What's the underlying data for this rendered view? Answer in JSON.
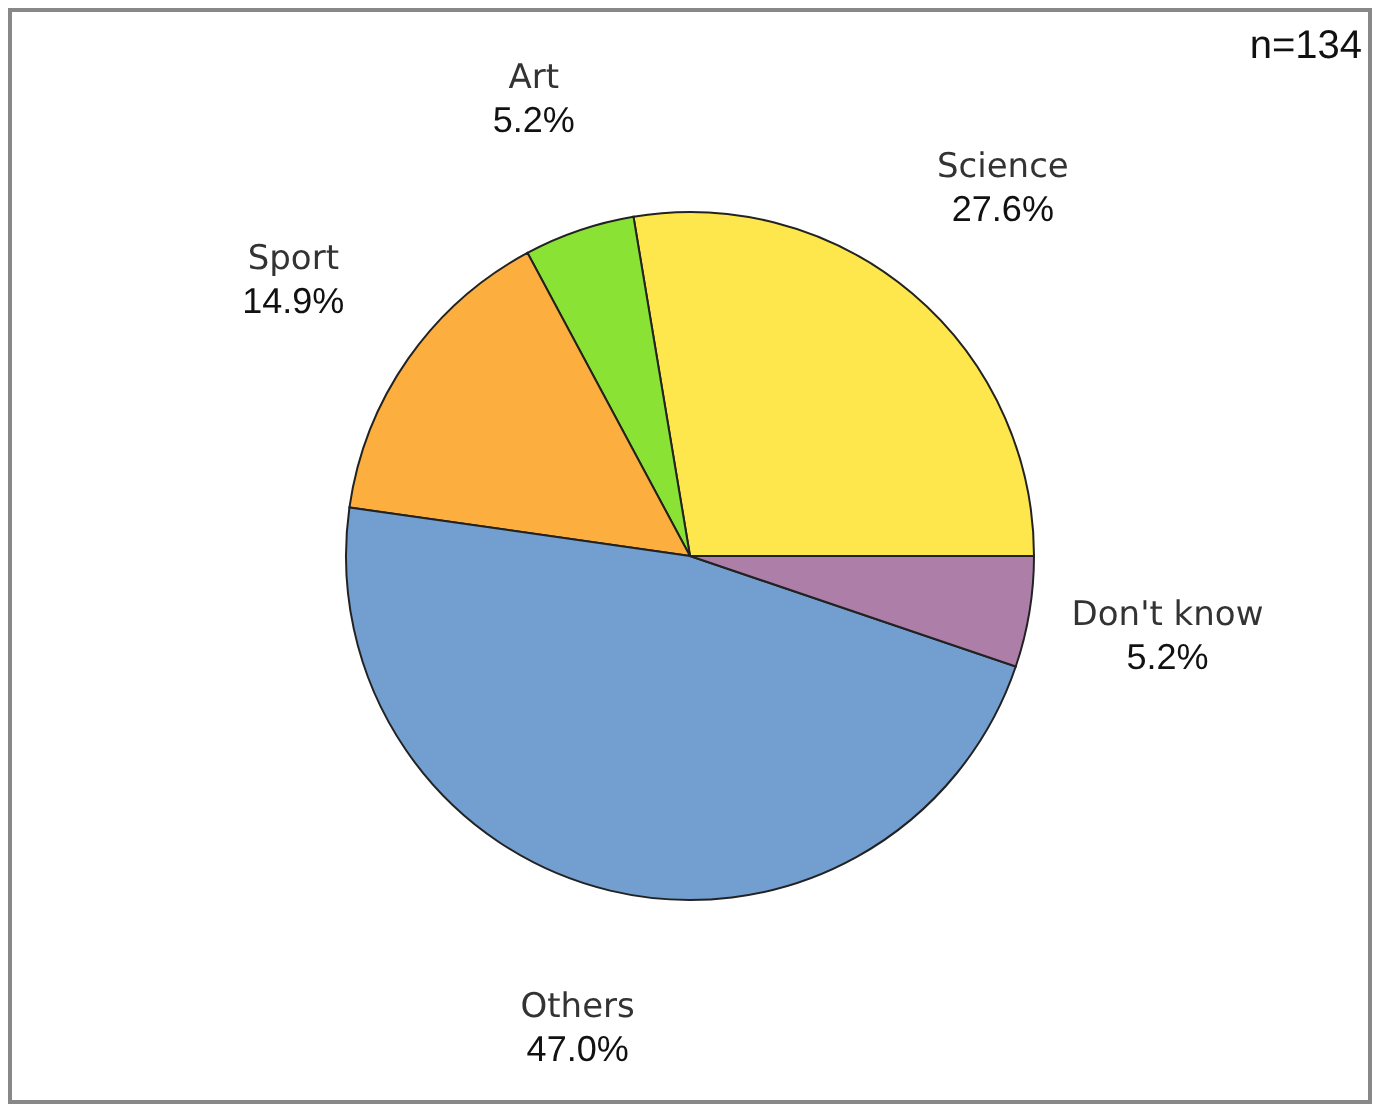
{
  "chart_data": {
    "type": "pie",
    "categories": [
      "Science",
      "Art",
      "Sport",
      "Others",
      "Don't know"
    ],
    "values": [
      27.6,
      5.2,
      14.9,
      47.0,
      5.2
    ],
    "colors": [
      "#fde74c",
      "#8ae234",
      "#fcaf3e",
      "#729fcf",
      "#ad7fa8"
    ],
    "value_labels": [
      "27.6%",
      "5.2%",
      "14.9%",
      "47.0%",
      "5.2%"
    ],
    "legend": false,
    "annotations": [
      "n=134"
    ]
  }
}
